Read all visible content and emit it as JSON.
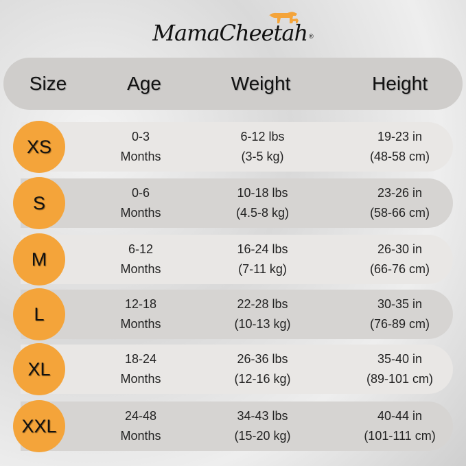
{
  "brand": {
    "name": "MamaCheetah",
    "registered": "®"
  },
  "colors": {
    "accent": "#f4a43a",
    "header_bg": "#cfcdcb",
    "row_light": "#e9e7e5",
    "row_dark": "#d6d4d2"
  },
  "header": {
    "size": "Size",
    "age": "Age",
    "weight": "Weight",
    "height": "Height"
  },
  "rows": [
    {
      "size": "XS",
      "age": [
        "0-3",
        "Months"
      ],
      "weight": [
        "6-12 lbs",
        "(3-5 kg)"
      ],
      "height": [
        "19-23 in",
        "(48-58 cm)"
      ]
    },
    {
      "size": "S",
      "age": [
        "0-6",
        "Months"
      ],
      "weight": [
        "10-18 lbs",
        "(4.5-8 kg)"
      ],
      "height": [
        "23-26 in",
        "(58-66 cm)"
      ]
    },
    {
      "size": "M",
      "age": [
        "6-12",
        "Months"
      ],
      "weight": [
        "16-24 lbs",
        "(7-11 kg)"
      ],
      "height": [
        "26-30 in",
        "(66-76 cm)"
      ]
    },
    {
      "size": "L",
      "age": [
        "12-18",
        "Months"
      ],
      "weight": [
        "22-28 lbs",
        "(10-13 kg)"
      ],
      "height": [
        "30-35 in",
        "(76-89 cm)"
      ]
    },
    {
      "size": "XL",
      "age": [
        "18-24",
        "Months"
      ],
      "weight": [
        "26-36 lbs",
        "(12-16 kg)"
      ],
      "height": [
        "35-40 in",
        "(89-101 cm)"
      ]
    },
    {
      "size": "XXL",
      "age": [
        "24-48",
        "Months"
      ],
      "weight": [
        "34-43 lbs",
        "(15-20 kg)"
      ],
      "height": [
        "40-44 in",
        "(101-111 cm)"
      ]
    }
  ]
}
